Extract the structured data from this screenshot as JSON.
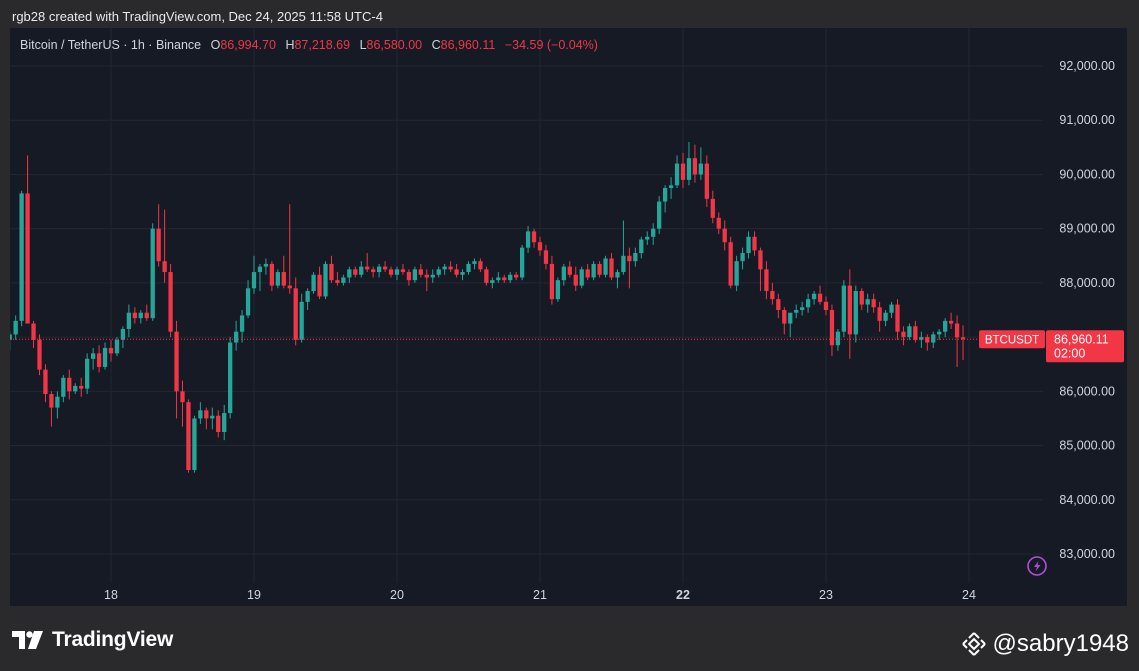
{
  "header": {
    "credit": "rgb28 created with TradingView.com, Dec 24, 2025 11:58 UTC-4"
  },
  "ohlc": {
    "symbol": "Bitcoin / TetherUS · 1h · Binance",
    "o_label": "O",
    "o": "86,994.70",
    "h_label": "H",
    "h": "87,218.69",
    "l_label": "L",
    "l": "86,580.00",
    "c_label": "C",
    "c": "86,960.11",
    "change": "−34.59 (−0.04%)"
  },
  "price_tag": {
    "symbol": "BTCUSDT",
    "price": "86,960.11",
    "countdown": "02:00"
  },
  "footer": {
    "brand": "TradingView",
    "watermark": "@sabry1948"
  },
  "colors": {
    "up": "#26a69a",
    "down": "#f23645",
    "background": "#161a25",
    "grid": "#232733",
    "text": "#d1d4dc"
  },
  "icons": [
    "tradingview-logo-icon",
    "binance-logo-icon",
    "lightning-icon"
  ],
  "chart_data": {
    "type": "candlestick",
    "title": "Bitcoin / TetherUS · 1h · Binance",
    "ylim": [
      82500,
      92500
    ],
    "y_ticks": [
      83000,
      84000,
      85000,
      86000,
      87000,
      88000,
      89000,
      90000,
      91000,
      92000
    ],
    "y_tick_labels": [
      "83,000.00",
      "84,000.00",
      "85,000.00",
      "86,000.00",
      "87,000.00",
      "88,000.00",
      "89,000.00",
      "90,000.00",
      "91,000.00",
      "92,000.00"
    ],
    "x_tick_labels": [
      "18",
      "19",
      "20",
      "21",
      "22",
      "23",
      "24"
    ],
    "x_tick_bold": "22",
    "x_range": [
      -17,
      170
    ],
    "last_price": 86960.11,
    "grid": true,
    "candles": [
      [
        86950,
        87100,
        86750,
        87050
      ],
      [
        87050,
        87400,
        86950,
        87300
      ],
      [
        87300,
        89700,
        87200,
        89650
      ],
      [
        89650,
        90350,
        87300,
        87250
      ],
      [
        87250,
        87300,
        86800,
        86950
      ],
      [
        86950,
        87050,
        86300,
        86400
      ],
      [
        86400,
        86500,
        85800,
        85950
      ],
      [
        85950,
        86000,
        85350,
        85700
      ],
      [
        85700,
        86000,
        85500,
        85900
      ],
      [
        85900,
        86300,
        85800,
        86250
      ],
      [
        86250,
        86400,
        85850,
        86000
      ],
      [
        86000,
        86150,
        85950,
        86100
      ],
      [
        86100,
        86250,
        85900,
        86050
      ],
      [
        86050,
        86700,
        85950,
        86600
      ],
      [
        86600,
        86800,
        86400,
        86700
      ],
      [
        86700,
        86850,
        86350,
        86450
      ],
      [
        86450,
        86900,
        86400,
        86800
      ],
      [
        86800,
        86950,
        86550,
        86700
      ],
      [
        86700,
        87000,
        86650,
        86950
      ],
      [
        86950,
        87200,
        86800,
        87150
      ],
      [
        87150,
        87600,
        87000,
        87450
      ],
      [
        87450,
        87550,
        87250,
        87350
      ],
      [
        87350,
        87500,
        87250,
        87450
      ],
      [
        87450,
        87600,
        87300,
        87350
      ],
      [
        87350,
        89100,
        87300,
        89000
      ],
      [
        89000,
        89450,
        88300,
        88400
      ],
      [
        88400,
        89350,
        88000,
        88200
      ],
      [
        88200,
        88350,
        87000,
        87100
      ],
      [
        87100,
        87300,
        85500,
        86000
      ],
      [
        86000,
        86200,
        85350,
        85800
      ],
      [
        85800,
        85850,
        84500,
        84550
      ],
      [
        84550,
        85550,
        84500,
        85500
      ],
      [
        85500,
        85800,
        85400,
        85650
      ],
      [
        85650,
        85700,
        85300,
        85500
      ],
      [
        85500,
        85700,
        85300,
        85550
      ],
      [
        85550,
        85650,
        85150,
        85250
      ],
      [
        85250,
        85750,
        85100,
        85600
      ],
      [
        85600,
        87000,
        85500,
        86900
      ],
      [
        86900,
        87300,
        86750,
        87100
      ],
      [
        87100,
        87500,
        86900,
        87400
      ],
      [
        87400,
        88050,
        87350,
        87900
      ],
      [
        87900,
        88500,
        87800,
        88200
      ],
      [
        88200,
        88350,
        87850,
        88300
      ],
      [
        88300,
        88450,
        88150,
        88350
      ],
      [
        88350,
        88400,
        87850,
        87950
      ],
      [
        87950,
        88250,
        87900,
        88200
      ],
      [
        88200,
        88500,
        87900,
        87950
      ],
      [
        87950,
        89450,
        87800,
        87900
      ],
      [
        87900,
        88100,
        86850,
        86950
      ],
      [
        86950,
        87800,
        86900,
        87650
      ],
      [
        87650,
        87900,
        87500,
        87850
      ],
      [
        87850,
        88200,
        87800,
        88150
      ],
      [
        88150,
        88300,
        87700,
        87750
      ],
      [
        87750,
        88400,
        87700,
        88350
      ],
      [
        88350,
        88500,
        88000,
        88050
      ],
      [
        88050,
        88200,
        87950,
        88000
      ],
      [
        88000,
        88150,
        87950,
        88100
      ],
      [
        88100,
        88300,
        88000,
        88250
      ],
      [
        88250,
        88300,
        88100,
        88150
      ],
      [
        88150,
        88400,
        88100,
        88300
      ],
      [
        88300,
        88550,
        88200,
        88250
      ],
      [
        88250,
        88300,
        88100,
        88200
      ],
      [
        88200,
        88350,
        88100,
        88300
      ],
      [
        88300,
        88400,
        88200,
        88250
      ],
      [
        88250,
        88300,
        88100,
        88150
      ],
      [
        88150,
        88300,
        88050,
        88250
      ],
      [
        88250,
        88350,
        88150,
        88200
      ],
      [
        88200,
        88250,
        87950,
        88050
      ],
      [
        88050,
        88300,
        88000,
        88250
      ],
      [
        88250,
        88350,
        88100,
        88150
      ],
      [
        88150,
        88250,
        87850,
        88100
      ],
      [
        88100,
        88250,
        88000,
        88150
      ],
      [
        88150,
        88300,
        88100,
        88250
      ],
      [
        88250,
        88350,
        88150,
        88300
      ],
      [
        88300,
        88400,
        88200,
        88250
      ],
      [
        88250,
        88350,
        88100,
        88150
      ],
      [
        88150,
        88250,
        88050,
        88200
      ],
      [
        88200,
        88400,
        88150,
        88350
      ],
      [
        88350,
        88450,
        88250,
        88400
      ],
      [
        88400,
        88450,
        88200,
        88250
      ],
      [
        88250,
        88300,
        87950,
        88000
      ],
      [
        88000,
        88100,
        87900,
        88050
      ],
      [
        88050,
        88200,
        88000,
        88100
      ],
      [
        88100,
        88150,
        88000,
        88050
      ],
      [
        88050,
        88200,
        88000,
        88150
      ],
      [
        88150,
        88200,
        88050,
        88100
      ],
      [
        88100,
        88700,
        88050,
        88650
      ],
      [
        88650,
        89050,
        88550,
        88950
      ],
      [
        88950,
        89000,
        88650,
        88750
      ],
      [
        88750,
        88850,
        88500,
        88600
      ],
      [
        88600,
        88700,
        88250,
        88350
      ],
      [
        88350,
        88500,
        87600,
        87700
      ],
      [
        87700,
        88100,
        87650,
        88050
      ],
      [
        88050,
        88350,
        87950,
        88300
      ],
      [
        88300,
        88400,
        88100,
        88150
      ],
      [
        88150,
        88300,
        87850,
        87950
      ],
      [
        87950,
        88300,
        87900,
        88250
      ],
      [
        88250,
        88350,
        88050,
        88100
      ],
      [
        88100,
        88400,
        88050,
        88350
      ],
      [
        88350,
        88400,
        88100,
        88150
      ],
      [
        88150,
        88500,
        88100,
        88450
      ],
      [
        88450,
        88550,
        88050,
        88100
      ],
      [
        88100,
        88250,
        87900,
        88200
      ],
      [
        88200,
        89150,
        88150,
        88500
      ],
      [
        88500,
        88650,
        87900,
        88400
      ],
      [
        88400,
        88650,
        88300,
        88550
      ],
      [
        88550,
        88850,
        88450,
        88800
      ],
      [
        88800,
        88950,
        88700,
        88850
      ],
      [
        88850,
        89100,
        88700,
        89000
      ],
      [
        89000,
        89600,
        88900,
        89500
      ],
      [
        89500,
        89800,
        89300,
        89750
      ],
      [
        89750,
        89950,
        89550,
        89800
      ],
      [
        89800,
        90350,
        89750,
        90200
      ],
      [
        90200,
        90400,
        89750,
        89900
      ],
      [
        89900,
        90600,
        89800,
        90300
      ],
      [
        90300,
        90550,
        89850,
        90000
      ],
      [
        90000,
        90500,
        89900,
        90200
      ],
      [
        90200,
        90350,
        89400,
        89550
      ],
      [
        89550,
        89700,
        89100,
        89200
      ],
      [
        89200,
        89300,
        88900,
        89000
      ],
      [
        89000,
        89150,
        88600,
        88750
      ],
      [
        88750,
        88850,
        87900,
        87950
      ],
      [
        87950,
        88500,
        87850,
        88400
      ],
      [
        88400,
        88650,
        88250,
        88550
      ],
      [
        88550,
        88950,
        88450,
        88850
      ],
      [
        88850,
        88950,
        88500,
        88600
      ],
      [
        88600,
        88650,
        87850,
        88250
      ],
      [
        88250,
        88400,
        87700,
        87850
      ],
      [
        87850,
        88000,
        87600,
        87700
      ],
      [
        87700,
        87800,
        87350,
        87500
      ],
      [
        87500,
        87550,
        87050,
        87250
      ],
      [
        87250,
        87350,
        87000,
        87450
      ],
      [
        87450,
        87600,
        87350,
        87500
      ],
      [
        87500,
        87650,
        87400,
        87550
      ],
      [
        87550,
        87800,
        87450,
        87700
      ],
      [
        87700,
        87850,
        87600,
        87800
      ],
      [
        87800,
        87950,
        87600,
        87650
      ],
      [
        87650,
        87750,
        87400,
        87500
      ],
      [
        87500,
        87600,
        86650,
        86850
      ],
      [
        86850,
        87150,
        86750,
        87100
      ],
      [
        87100,
        88050,
        87000,
        87950
      ],
      [
        87950,
        88250,
        86600,
        87050
      ],
      [
        87050,
        87950,
        86900,
        87850
      ],
      [
        87850,
        87900,
        87500,
        87600
      ],
      [
        87600,
        87800,
        87450,
        87700
      ],
      [
        87700,
        87800,
        87450,
        87550
      ],
      [
        87550,
        87650,
        87100,
        87300
      ],
      [
        87300,
        87500,
        87200,
        87450
      ],
      [
        87450,
        87650,
        87350,
        87600
      ],
      [
        87600,
        87700,
        86950,
        87100
      ],
      [
        87100,
        87200,
        86850,
        87000
      ],
      [
        87000,
        87250,
        86950,
        87200
      ],
      [
        87200,
        87300,
        86900,
        86950
      ],
      [
        86950,
        87100,
        86800,
        87000
      ],
      [
        87000,
        87050,
        86750,
        86900
      ],
      [
        86900,
        87100,
        86800,
        87050
      ],
      [
        87050,
        87150,
        86950,
        87100
      ],
      [
        87100,
        87350,
        87000,
        87300
      ],
      [
        87300,
        87450,
        87150,
        87250
      ],
      [
        87250,
        87400,
        86450,
        86994.7
      ],
      [
        86994.7,
        87218.69,
        86580,
        86960.11
      ]
    ]
  }
}
